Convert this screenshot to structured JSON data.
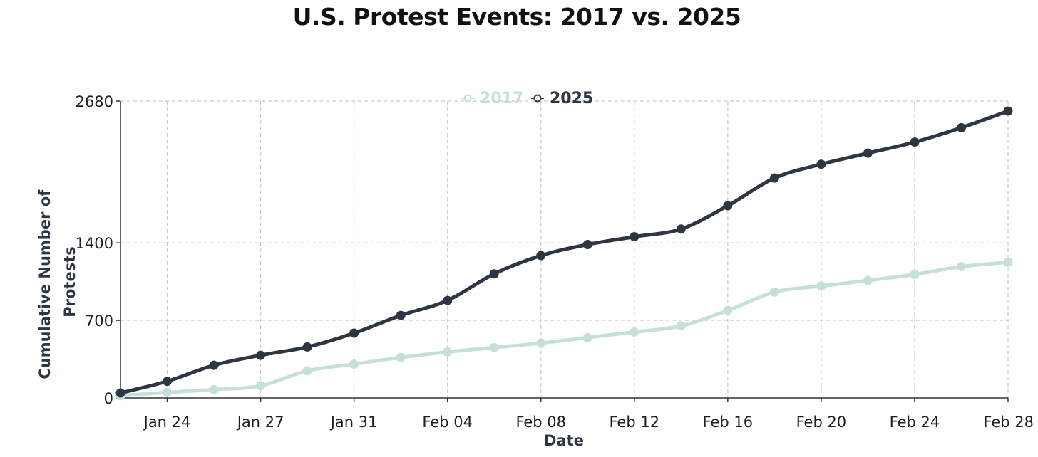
{
  "chart_data": {
    "type": "line",
    "title": "U.S. Protest Events: 2017 vs. 2025",
    "xlabel": "Date",
    "ylabel_lines": [
      "Cumulative Number of",
      "Protests"
    ],
    "x_tick_labels": [
      "Jan 24",
      "Jan 27",
      "Jan 31",
      "Feb 04",
      "Feb 08",
      "Feb 12",
      "Feb 16",
      "Feb 20",
      "Feb 24",
      "Feb 28"
    ],
    "x_tick_days": [
      2,
      6,
      10,
      14,
      18,
      22,
      26,
      30,
      34,
      38
    ],
    "y_ticks": [
      0,
      700,
      1400,
      2680
    ],
    "ylim": [
      0,
      2680
    ],
    "xlim": [
      0,
      38
    ],
    "grid": true,
    "legend_position": "top-center",
    "x_days": [
      0,
      2,
      4,
      6,
      8,
      10,
      12,
      14,
      16,
      18,
      20,
      22,
      24,
      26,
      28,
      30,
      32,
      34,
      36,
      38
    ],
    "series": [
      {
        "name": "2017",
        "color": "#c5e0da",
        "values": [
          20,
          50,
          75,
          110,
          245,
          305,
          365,
          415,
          455,
          495,
          545,
          595,
          650,
          790,
          955,
          1010,
          1060,
          1115,
          1185,
          1225
        ]
      },
      {
        "name": "2025",
        "color": "#2d3642",
        "values": [
          45,
          150,
          295,
          385,
          460,
          585,
          745,
          880,
          1120,
          1285,
          1385,
          1455,
          1525,
          1735,
          1985,
          2110,
          2210,
          2310,
          2440,
          2590
        ]
      }
    ]
  }
}
